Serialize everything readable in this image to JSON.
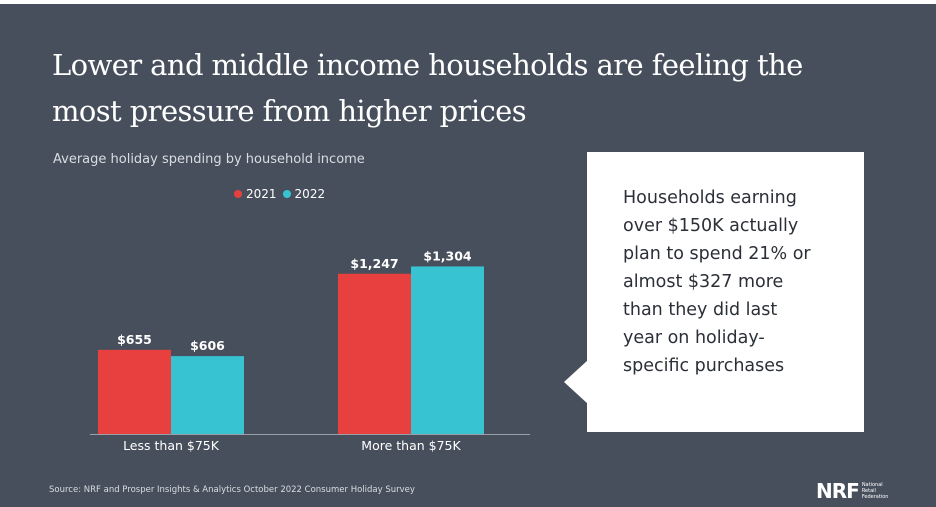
{
  "title": "Lower and middle income households are feeling the most pressure from higher prices",
  "subtitle": "Average holiday spending by household income",
  "colors": {
    "series_2021": "#e8403e",
    "series_2022": "#38c3d2",
    "background": "#474f5c"
  },
  "chart_data": {
    "type": "bar",
    "categories": [
      "Less than $75K",
      "More than $75K"
    ],
    "series": [
      {
        "name": "2021",
        "values": [
          655,
          1247
        ],
        "labels": [
          "$655",
          "$1,247"
        ]
      },
      {
        "name": "2022",
        "values": [
          606,
          1304
        ],
        "labels": [
          "$606",
          "$1,304"
        ]
      }
    ],
    "title": "Average holiday spending by household income",
    "legend": "top-center",
    "grid": false
  },
  "callout": {
    "lines": [
      "Households earning",
      "over $150K actually",
      "plan to spend 21% or",
      "almost $327 more",
      "than they did last",
      "year on holiday-",
      "specific purchases"
    ]
  },
  "source": "Source: NRF and Prosper Insights & Analytics October 2022 Consumer Holiday Survey",
  "logo": {
    "mark": "NRF",
    "sub": [
      "National",
      "Retail",
      "Federation"
    ]
  }
}
